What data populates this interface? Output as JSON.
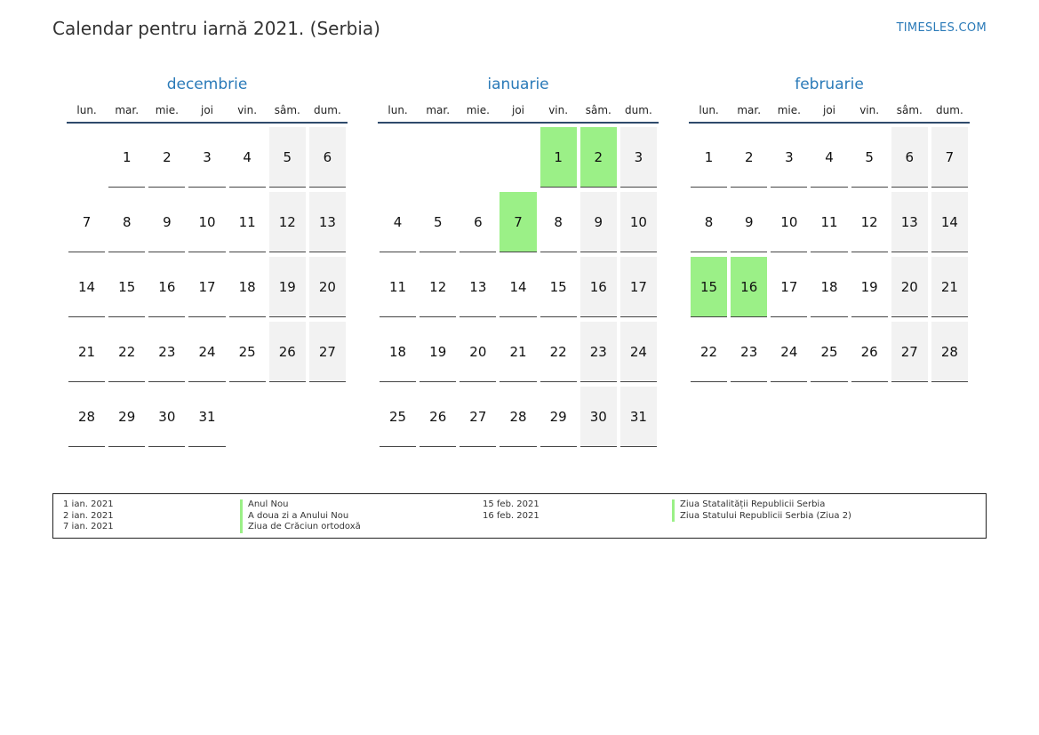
{
  "header": {
    "title": "Calendar pentru iarnă 2021. (Serbia)",
    "brand": "TIMESLES.COM"
  },
  "weekdays": [
    "lun.",
    "mar.",
    "mie.",
    "joi",
    "vin.",
    "sâm.",
    "dum."
  ],
  "months": [
    {
      "name": "decembrie",
      "weeks": [
        [
          "",
          "1",
          "2",
          "3",
          "4",
          "5",
          "6"
        ],
        [
          "7",
          "8",
          "9",
          "10",
          "11",
          "12",
          "13"
        ],
        [
          "14",
          "15",
          "16",
          "17",
          "18",
          "19",
          "20"
        ],
        [
          "21",
          "22",
          "23",
          "24",
          "25",
          "26",
          "27"
        ],
        [
          "28",
          "29",
          "30",
          "31",
          "",
          "",
          ""
        ]
      ],
      "holidays": []
    },
    {
      "name": "ianuarie",
      "weeks": [
        [
          "",
          "",
          "",
          "",
          "1",
          "2",
          "3"
        ],
        [
          "4",
          "5",
          "6",
          "7",
          "8",
          "9",
          "10"
        ],
        [
          "11",
          "12",
          "13",
          "14",
          "15",
          "16",
          "17"
        ],
        [
          "18",
          "19",
          "20",
          "21",
          "22",
          "23",
          "24"
        ],
        [
          "25",
          "26",
          "27",
          "28",
          "29",
          "30",
          "31"
        ]
      ],
      "holidays": [
        "1",
        "2",
        "7"
      ]
    },
    {
      "name": "februarie",
      "weeks": [
        [
          "1",
          "2",
          "3",
          "4",
          "5",
          "6",
          "7"
        ],
        [
          "8",
          "9",
          "10",
          "11",
          "12",
          "13",
          "14"
        ],
        [
          "15",
          "16",
          "17",
          "18",
          "19",
          "20",
          "21"
        ],
        [
          "22",
          "23",
          "24",
          "25",
          "26",
          "27",
          "28"
        ]
      ],
      "holidays": [
        "15",
        "16"
      ]
    }
  ],
  "legend": {
    "left": [
      {
        "date": "1 ian. 2021",
        "name": "Anul Nou"
      },
      {
        "date": "2 ian. 2021",
        "name": "A doua zi a Anului Nou"
      },
      {
        "date": "7 ian. 2021",
        "name": "Ziua de Crăciun ortodoxă"
      }
    ],
    "right": [
      {
        "date": "15 feb. 2021",
        "name": "Ziua Statalității Republicii Serbia"
      },
      {
        "date": "16 feb. 2021",
        "name": "Ziua Statului Republicii Serbia (Ziua 2)"
      }
    ]
  },
  "colors": {
    "holiday": "#9bf087",
    "weekend": "#f2f2f2",
    "accent": "#2a7ab8"
  }
}
